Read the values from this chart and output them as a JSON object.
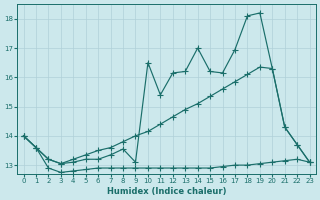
{
  "xlabel": "Humidex (Indice chaleur)",
  "bg_color": "#cce8ec",
  "grid_color": "#b0d0d8",
  "line_color": "#1a6e6a",
  "xlim": [
    -0.5,
    23.5
  ],
  "ylim": [
    12.7,
    18.5
  ],
  "xticks": [
    0,
    1,
    2,
    3,
    4,
    5,
    6,
    7,
    8,
    9,
    10,
    11,
    12,
    13,
    14,
    15,
    16,
    17,
    18,
    19,
    20,
    21,
    22,
    23
  ],
  "yticks": [
    13,
    14,
    15,
    16,
    17,
    18
  ],
  "series_jagged_x": [
    0,
    1,
    2,
    3,
    4,
    5,
    6,
    7,
    8,
    9,
    10,
    11,
    12,
    13,
    14,
    15,
    16,
    17,
    18,
    19,
    20,
    21,
    22,
    23
  ],
  "series_jagged_y": [
    14.0,
    13.6,
    13.2,
    13.05,
    13.1,
    13.2,
    13.2,
    13.35,
    13.55,
    13.1,
    16.5,
    15.4,
    16.15,
    16.2,
    17.0,
    16.2,
    16.15,
    16.95,
    18.1,
    18.2,
    16.3,
    14.3,
    13.7,
    13.1
  ],
  "series_upper_diag_x": [
    0,
    1,
    2,
    3,
    4,
    5,
    6,
    7,
    8,
    9,
    10,
    11,
    12,
    13,
    14,
    15,
    16,
    17,
    18,
    19,
    20,
    21,
    22,
    23
  ],
  "series_upper_diag_y": [
    14.0,
    13.6,
    13.2,
    13.05,
    13.2,
    13.35,
    13.5,
    13.6,
    13.8,
    14.0,
    14.15,
    14.4,
    14.65,
    14.9,
    15.1,
    15.35,
    15.6,
    15.85,
    16.1,
    16.35,
    16.3,
    14.3,
    13.7,
    13.1
  ],
  "series_lower_diag_x": [
    0,
    1,
    2,
    3,
    4,
    5,
    6,
    7,
    8,
    9,
    10,
    11,
    12,
    13,
    14,
    15,
    16,
    17,
    18,
    19,
    20,
    21,
    22,
    23
  ],
  "series_lower_diag_y": [
    14.0,
    13.6,
    12.9,
    12.75,
    12.8,
    12.85,
    12.9,
    12.9,
    12.9,
    12.9,
    12.9,
    12.9,
    12.9,
    12.9,
    12.9,
    12.9,
    12.95,
    13.0,
    13.0,
    13.05,
    13.1,
    13.15,
    13.2,
    13.1
  ]
}
